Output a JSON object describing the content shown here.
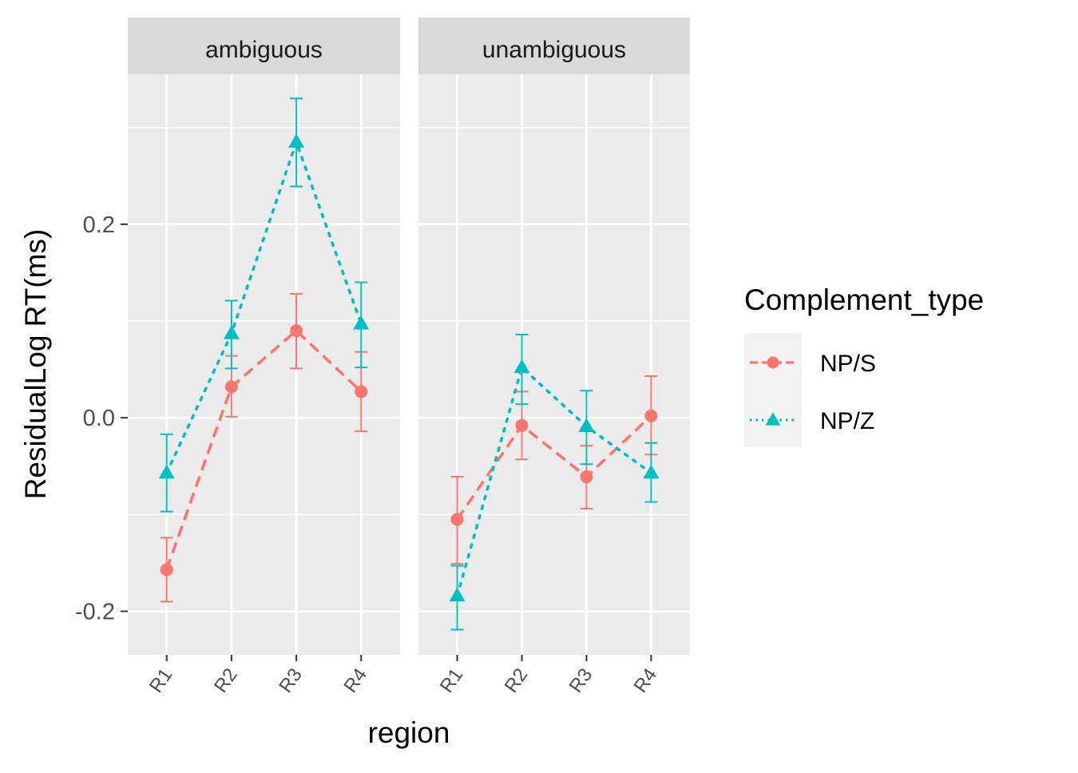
{
  "chart_data": {
    "type": "line",
    "xlabel": "region",
    "ylabel": "ResidualLog RT(ms)",
    "ylim": [
      -0.245,
      0.355
    ],
    "yticks": [
      -0.2,
      0.0,
      0.2
    ],
    "ytick_labels": [
      "-0.2",
      "0.0",
      "0.2"
    ],
    "categories": [
      "R1",
      "R2",
      "R3",
      "R4"
    ],
    "grid": true,
    "legend": {
      "title": "Complement_type",
      "position": "right",
      "entries": [
        "NP/S",
        "NP/Z"
      ]
    },
    "series_styles": [
      {
        "name": "NP/S",
        "color": "#F8766D",
        "marker": "circle",
        "linestyle": "dashed"
      },
      {
        "name": "NP/Z",
        "color": "#00BFC4",
        "marker": "triangle",
        "linestyle": "dotted"
      }
    ],
    "panels": [
      {
        "label": "ambiguous",
        "series": [
          {
            "name": "NP/S",
            "values": [
              -0.157,
              0.032,
              0.09,
              0.027
            ],
            "ci_low": [
              -0.19,
              0.001,
              0.051,
              -0.014
            ],
            "ci_high": [
              -0.124,
              0.064,
              0.128,
              0.068
            ]
          },
          {
            "name": "NP/Z",
            "values": [
              -0.057,
              0.087,
              0.285,
              0.097
            ],
            "ci_low": [
              -0.097,
              0.051,
              0.239,
              0.052
            ],
            "ci_high": [
              -0.017,
              0.121,
              0.33,
              0.14
            ]
          }
        ]
      },
      {
        "label": "unambiguous",
        "series": [
          {
            "name": "NP/S",
            "values": [
              -0.105,
              -0.008,
              -0.061,
              0.002
            ],
            "ci_low": [
              -0.151,
              -0.043,
              -0.094,
              -0.038
            ],
            "ci_high": [
              -0.061,
              0.027,
              -0.029,
              0.043
            ]
          },
          {
            "name": "NP/Z",
            "values": [
              -0.184,
              0.052,
              -0.009,
              -0.057
            ],
            "ci_low": [
              -0.219,
              0.014,
              -0.048,
              -0.087
            ],
            "ci_high": [
              -0.153,
              0.086,
              0.028,
              -0.026
            ]
          }
        ]
      }
    ]
  }
}
